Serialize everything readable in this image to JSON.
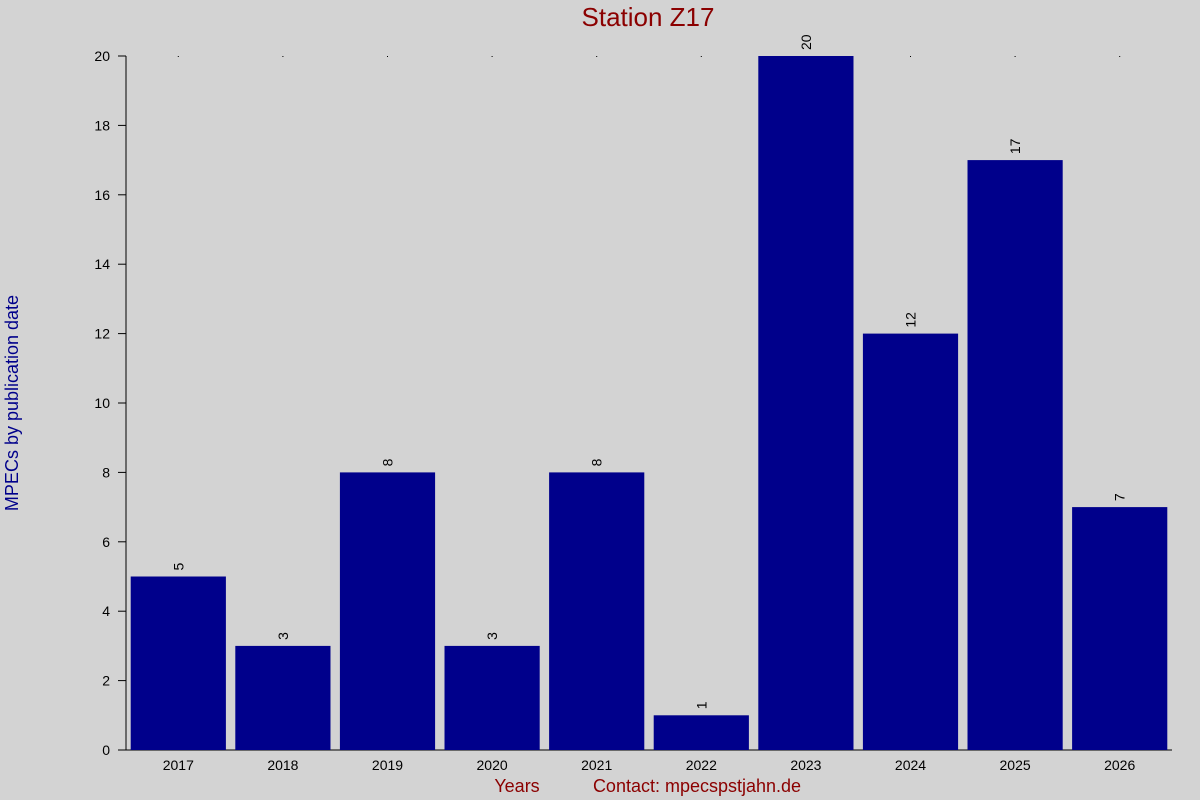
{
  "chart_data": {
    "type": "bar",
    "title": "Station Z17",
    "xlabel": "Years",
    "ylabel": "MPECs by publication date",
    "annotation": "Contact: mpecspstjahn.de",
    "categories": [
      "2017",
      "2018",
      "2019",
      "2020",
      "2021",
      "2022",
      "2023",
      "2024",
      "2025",
      "2026"
    ],
    "values": [
      5,
      3,
      8,
      3,
      8,
      1,
      20,
      12,
      17,
      7
    ],
    "color": "#00008b",
    "ylim": [
      0,
      20
    ],
    "yticks": [
      0,
      2,
      4,
      6,
      8,
      10,
      12,
      14,
      16,
      18,
      20
    ]
  }
}
